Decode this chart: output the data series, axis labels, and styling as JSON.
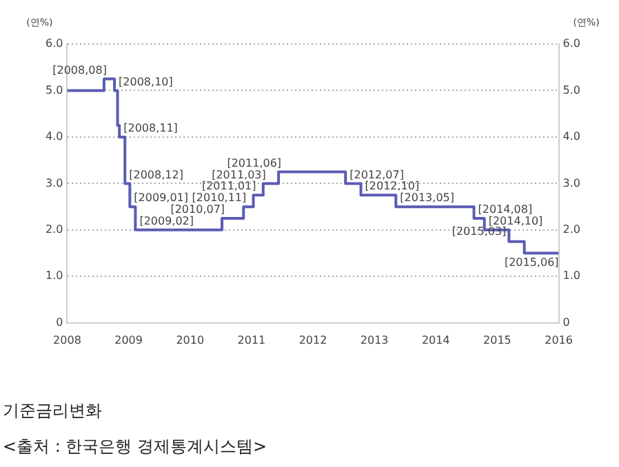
{
  "chart_data": {
    "type": "step",
    "title": "기준금리변화",
    "ylabel": "(연%)",
    "y2label": "(연%)",
    "x": [
      2008.0,
      2008.6,
      2008.77,
      2008.82,
      2008.85,
      2008.94,
      2009.02,
      2009.11,
      2010.52,
      2010.87,
      2011.03,
      2011.19,
      2011.44,
      2012.53,
      2012.78,
      2013.35,
      2014.62,
      2014.79,
      2015.19,
      2015.44,
      2016.0
    ],
    "series": [
      {
        "color": "#5b5bb5",
        "values": [
          5.0,
          5.25,
          5.0,
          4.25,
          4.0,
          3.0,
          2.5,
          2.0,
          2.25,
          2.5,
          2.75,
          3.0,
          3.25,
          3.0,
          2.75,
          2.5,
          2.25,
          2.0,
          1.75,
          1.5,
          1.5
        ]
      }
    ],
    "xlim": [
      2008,
      2016
    ],
    "xticks": [
      2008,
      2009,
      2010,
      2011,
      2012,
      2013,
      2014,
      2015,
      2016
    ],
    "ylim": [
      0,
      6
    ],
    "yticks": [
      0,
      {
        "value": 1,
        "label": "1.0"
      },
      {
        "value": 2,
        "label": "2.0"
      },
      {
        "value": 3,
        "label": "3.0"
      },
      {
        "value": 4,
        "label": "4.0"
      },
      {
        "value": 5,
        "label": "5.0"
      },
      {
        "value": 6,
        "label": "6.0"
      }
    ],
    "y2lim": [
      0,
      6
    ],
    "y2ticks": [
      0,
      {
        "value": 1,
        "label": "1.0"
      },
      {
        "value": 2,
        "label": "2.0"
      },
      {
        "value": 3,
        "label": "3.0"
      },
      {
        "value": 4,
        "label": "4.0"
      },
      {
        "value": 5,
        "label": "5.0"
      },
      {
        "value": 6,
        "label": "6.0"
      }
    ],
    "grid": "y",
    "legend": false,
    "marker": "none",
    "line_style": "solid",
    "annotations": [
      {
        "text": "[2008,08]",
        "x": 2008.6,
        "y": 5.25
      },
      {
        "text": "[2008,10]",
        "x": 2008.77,
        "y": 5.0
      },
      {
        "text": "[2008,11]",
        "x": 2008.85,
        "y": 4.0
      },
      {
        "text": "[2008,12]",
        "x": 2008.94,
        "y": 3.0
      },
      {
        "text": "[2009,01]",
        "x": 2009.02,
        "y": 2.5
      },
      {
        "text": "[2009,02]",
        "x": 2009.11,
        "y": 2.0
      },
      {
        "text": "[2010,07]",
        "x": 2010.52,
        "y": 2.25
      },
      {
        "text": "[2010,11]",
        "x": 2010.87,
        "y": 2.5
      },
      {
        "text": "[2011,01]",
        "x": 2011.03,
        "y": 2.75
      },
      {
        "text": "[2011,03]",
        "x": 2011.19,
        "y": 3.0
      },
      {
        "text": "[2011,06]",
        "x": 2011.44,
        "y": 3.25
      },
      {
        "text": "[2012,07]",
        "x": 2012.53,
        "y": 3.0
      },
      {
        "text": "[2012,10]",
        "x": 2012.78,
        "y": 2.75
      },
      {
        "text": "[2013,05]",
        "x": 2013.35,
        "y": 2.5
      },
      {
        "text": "[2014,08]",
        "x": 2014.62,
        "y": 2.25
      },
      {
        "text": "[2014,10]",
        "x": 2014.79,
        "y": 2.0
      },
      {
        "text": "[2015,03]",
        "x": 2015.19,
        "y": 1.75
      },
      {
        "text": "[2015,06]",
        "x": 2015.44,
        "y": 1.5
      },
      "<출처 : 한국은행 경제통계시스템>"
    ]
  }
}
